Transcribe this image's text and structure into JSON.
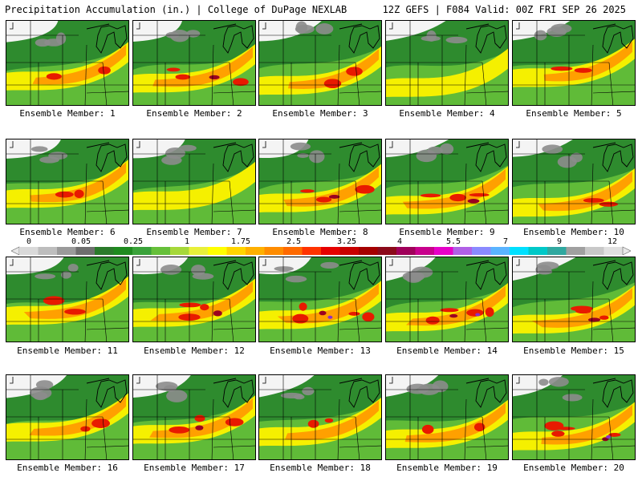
{
  "header": {
    "title_left": "Precipitation Accumulation (in.) | College of DuPage NEXLAB",
    "title_right": "12Z GEFS | F084 Valid: 00Z FRI SEP 26 2025"
  },
  "colorbar": {
    "tick_labels": [
      "0",
      "0.05",
      "0.25",
      "1",
      "1.75",
      "2.5",
      "3.25",
      "4",
      "5.5",
      "7",
      "9",
      "12"
    ],
    "colors": [
      "#d9d9d9",
      "#bdbdbd",
      "#9a9a9a",
      "#6e6e6e",
      "#2b7a2b",
      "#1f8a1f",
      "#3aa23a",
      "#66c03a",
      "#a6d83a",
      "#e8f03a",
      "#ffff00",
      "#ffd400",
      "#ffb000",
      "#ff8c00",
      "#ff6a00",
      "#ff3300",
      "#e60000",
      "#c80000",
      "#a50000",
      "#8b0a1a",
      "#a0005a",
      "#c8008c",
      "#e600c8",
      "#b060e6",
      "#8a8aff",
      "#5ab4ff",
      "#00e0ff",
      "#00c8c8",
      "#30a8a0",
      "#a0a0a0",
      "#c8c8c8",
      "#e0e0e0"
    ]
  },
  "map_colors": {
    "none": "#f4f4f4",
    "trace": "#8c8c8c",
    "light": "#2e8b2e",
    "mid": "#66c03a",
    "yellow": "#f5f000",
    "orange": "#ffa000",
    "red": "#e81a00",
    "dark": "#9b0020",
    "purple": "#8a30c8"
  },
  "panels": [
    {
      "label": "Ensemble Member: 1",
      "intensity": 2
    },
    {
      "label": "Ensemble Member: 2",
      "intensity": 3
    },
    {
      "label": "Ensemble Member: 3",
      "intensity": 2
    },
    {
      "label": "Ensemble Member: 4",
      "intensity": 1
    },
    {
      "label": "Ensemble Member: 5",
      "intensity": 2
    },
    {
      "label": "Ensemble Member: 6",
      "intensity": 2
    },
    {
      "label": "Ensemble Member: 7",
      "intensity": 1
    },
    {
      "label": "Ensemble Member: 8",
      "intensity": 3
    },
    {
      "label": "Ensemble Member: 9",
      "intensity": 3
    },
    {
      "label": "Ensemble Member: 10",
      "intensity": 2
    },
    {
      "label": "Ensemble Member: 11",
      "intensity": 2
    },
    {
      "label": "Ensemble Member: 12",
      "intensity": 3
    },
    {
      "label": "Ensemble Member: 13",
      "intensity": 4
    },
    {
      "label": "Ensemble Member: 14",
      "intensity": 4
    },
    {
      "label": "Ensemble Member: 15",
      "intensity": 3
    },
    {
      "label": "Ensemble Member: 16",
      "intensity": 2
    },
    {
      "label": "Ensemble Member: 17",
      "intensity": 3
    },
    {
      "label": "Ensemble Member: 18",
      "intensity": 2
    },
    {
      "label": "Ensemble Member: 19",
      "intensity": 2
    },
    {
      "label": "Ensemble Member: 20",
      "intensity": 4
    }
  ]
}
